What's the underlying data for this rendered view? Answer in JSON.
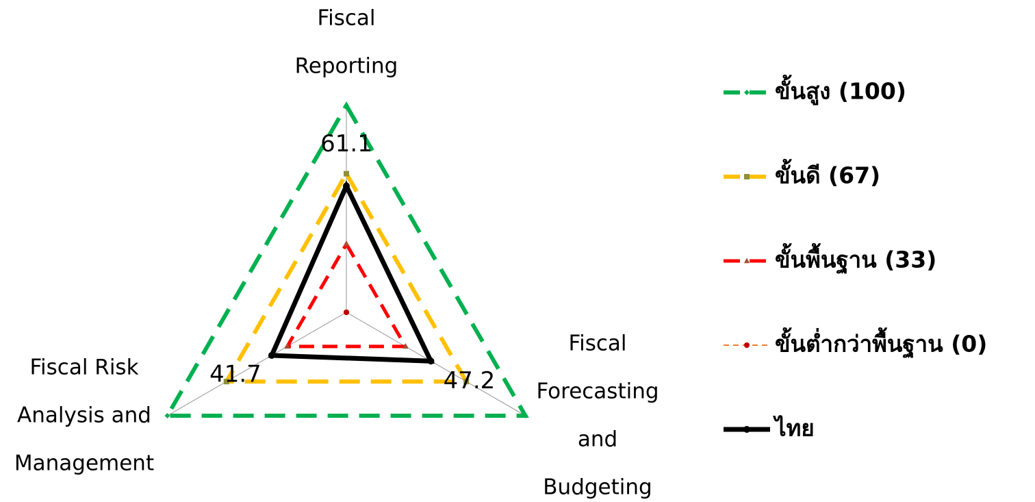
{
  "chart_data": {
    "type": "radar",
    "categories": [
      [
        "Fiscal",
        "Reporting"
      ],
      [
        "Fiscal",
        "Forecasting",
        "and",
        "Budgeting"
      ],
      [
        "Fiscal Risk",
        "Analysis and",
        "Management"
      ]
    ],
    "ylim": [
      0,
      100
    ],
    "series": [
      {
        "name": "ขั้นสูง (100)",
        "color": "#00b050",
        "values": [
          100,
          100,
          100
        ]
      },
      {
        "name": "ขั้นดี (67)",
        "color": "#ffc000",
        "values": [
          67,
          67,
          67
        ]
      },
      {
        "name": "ขั้นพื้นฐาน (33)",
        "color": "#ff0000",
        "values": [
          33,
          33,
          33
        ]
      },
      {
        "name": "ขั้นต่ำกว่าพื้นฐาน (0)",
        "color": "#ed7d31",
        "values": [
          0,
          0,
          0
        ]
      },
      {
        "name": "ไทย",
        "color": "#000000",
        "values": [
          61.1,
          47.2,
          41.7
        ]
      }
    ]
  }
}
